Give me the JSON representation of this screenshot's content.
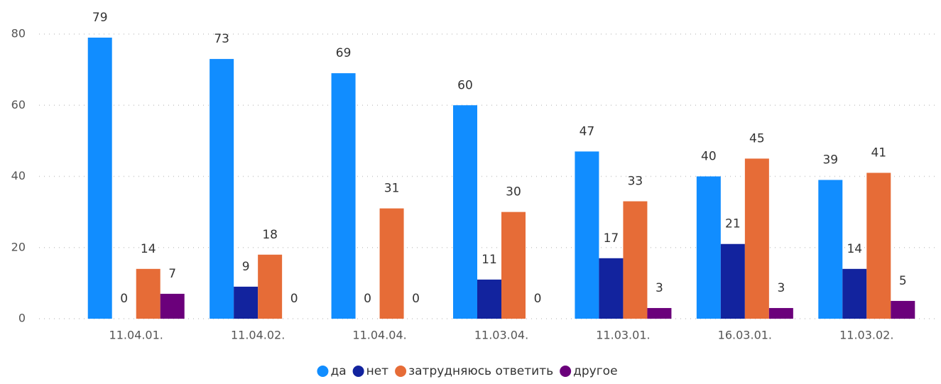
{
  "chart_data": {
    "type": "bar",
    "categories": [
      "11.04.01.",
      "11.04.02.",
      "11.04.04.",
      "11.03.04.",
      "11.03.01.",
      "16.03.01.",
      "11.03.02."
    ],
    "series": [
      {
        "name": "да",
        "color": "#118dff",
        "values": [
          79,
          73,
          69,
          60,
          47,
          40,
          39
        ]
      },
      {
        "name": "нет",
        "color": "#12239e",
        "values": [
          0,
          9,
          0,
          11,
          17,
          21,
          14
        ]
      },
      {
        "name": "затрудняюсь ответить",
        "color": "#e66c37",
        "values": [
          14,
          18,
          31,
          30,
          33,
          45,
          41
        ]
      },
      {
        "name": "другое",
        "color": "#6b007b",
        "values": [
          7,
          0,
          0,
          0,
          3,
          3,
          5
        ]
      }
    ],
    "ylim": [
      0,
      80
    ],
    "yticks": [
      0,
      20,
      40,
      60,
      80
    ],
    "grid": true,
    "legend": "bottom"
  }
}
